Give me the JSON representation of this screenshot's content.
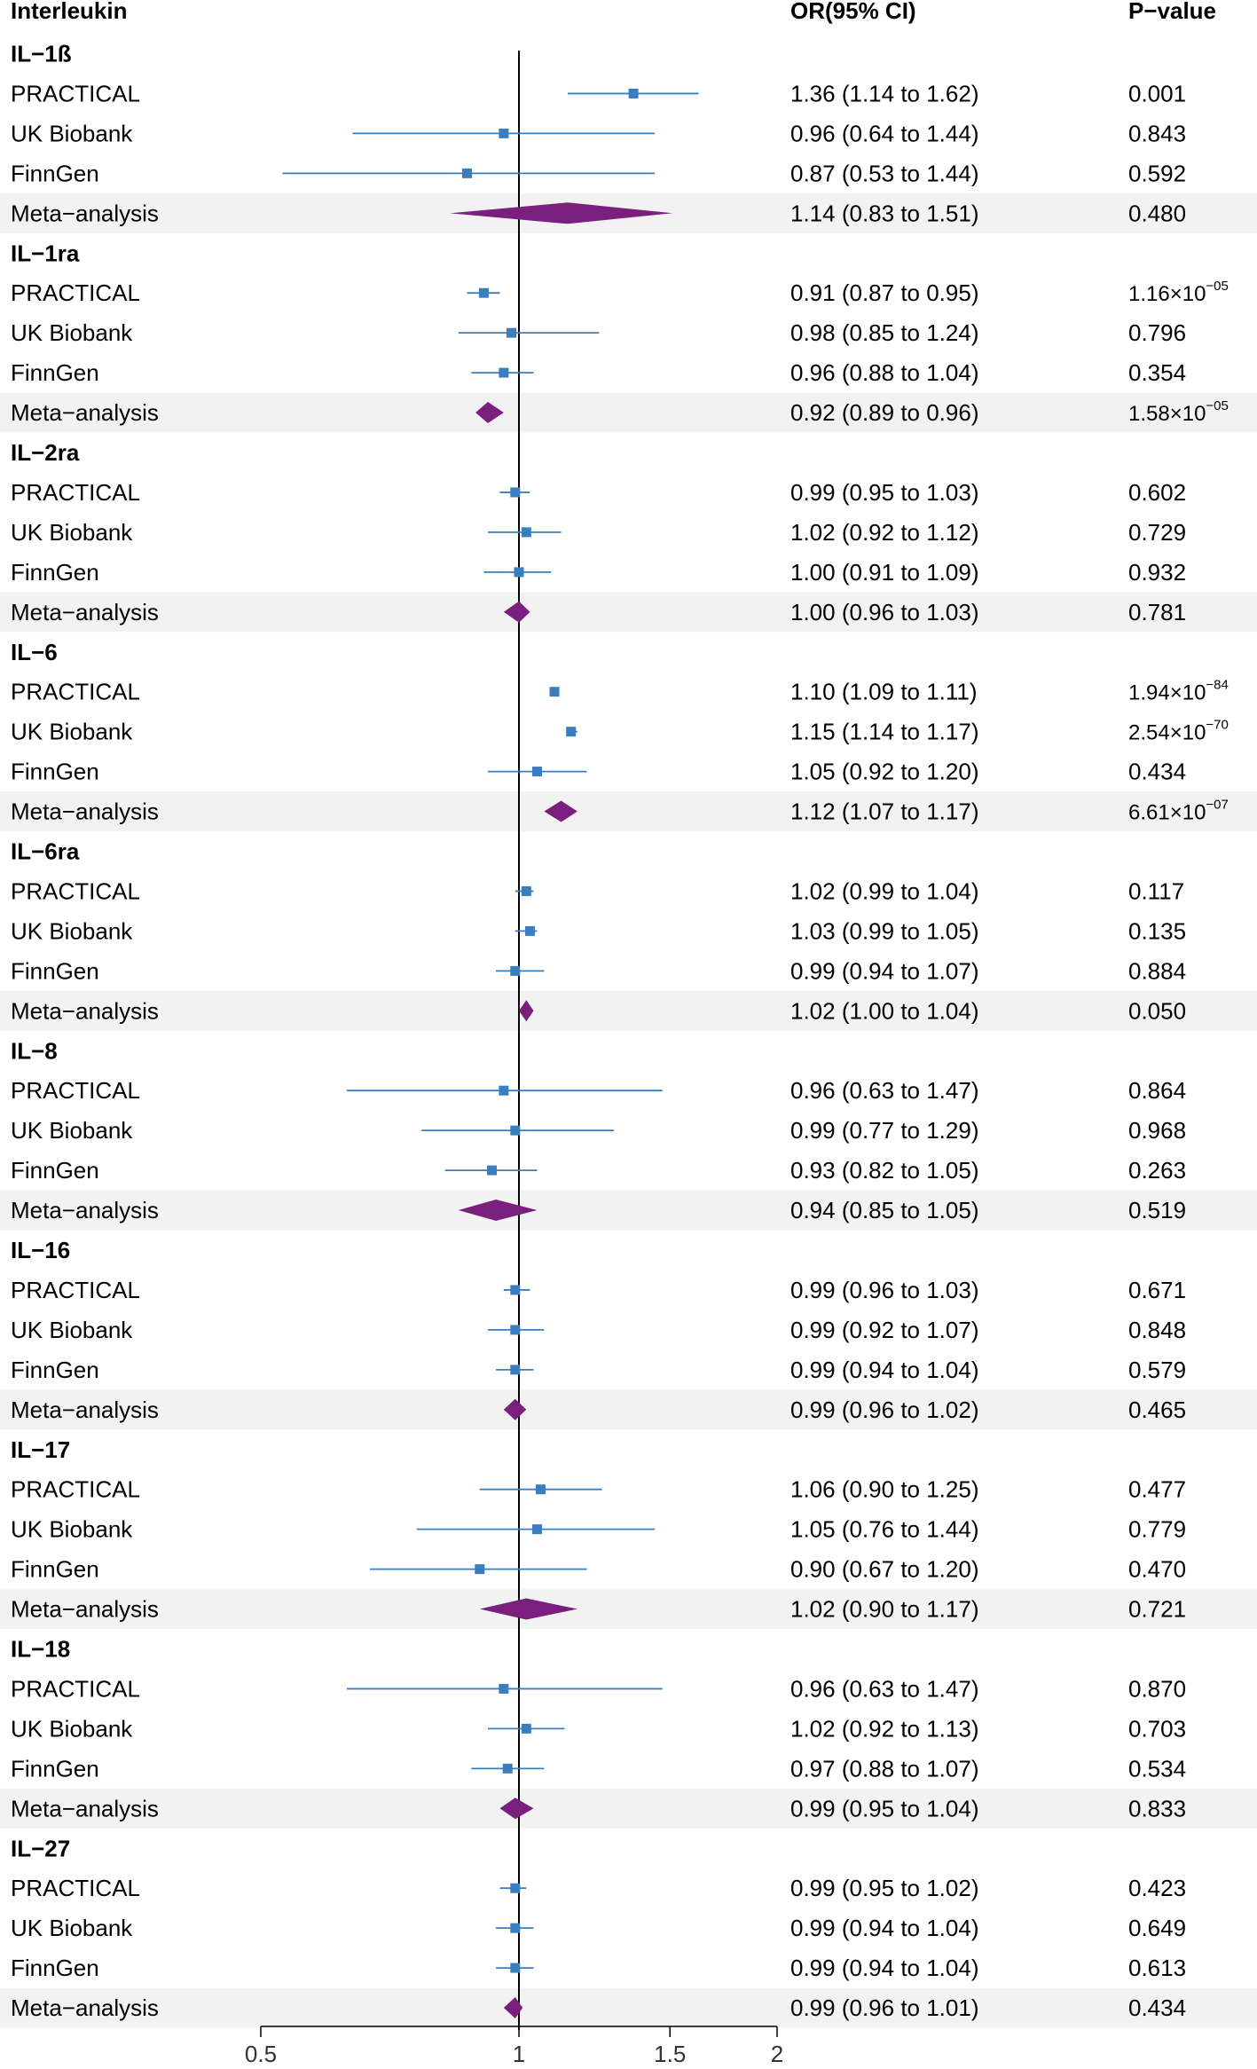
{
  "headers": {
    "label": "Interleukin",
    "or": "OR(95% CI)",
    "p": "P−value"
  },
  "colors": {
    "point": "#3A7EBF",
    "ci_line": "#3A7EBF",
    "diamond": "#7B1F7E",
    "shade": "#F2F2F2",
    "axis": "#000000"
  },
  "chart_data": {
    "type": "forest",
    "title": "",
    "xlabel": "",
    "x_scale": "log",
    "xlim": [
      0.5,
      2
    ],
    "xticks": [
      0.5,
      1,
      1.5,
      2
    ],
    "xtick_labels": [
      "0.5",
      "1",
      "1.5",
      "2"
    ],
    "reference_line": 1,
    "legend": "none",
    "groups": [
      {
        "name": "IL−1ß",
        "rows": [
          {
            "source": "PRACTICAL",
            "or": 1.36,
            "lo": 1.14,
            "hi": 1.62,
            "or_text": "1.36 (1.14 to 1.62)",
            "p_text": "0.001",
            "p_sup": "",
            "meta": false
          },
          {
            "source": "UK Biobank",
            "or": 0.96,
            "lo": 0.64,
            "hi": 1.44,
            "or_text": "0.96 (0.64 to 1.44)",
            "p_text": "0.843",
            "p_sup": "",
            "meta": false
          },
          {
            "source": "FinnGen",
            "or": 0.87,
            "lo": 0.53,
            "hi": 1.44,
            "or_text": "0.87 (0.53 to 1.44)",
            "p_text": "0.592",
            "p_sup": "",
            "meta": false
          },
          {
            "source": "Meta−analysis",
            "or": 1.14,
            "lo": 0.83,
            "hi": 1.51,
            "or_text": "1.14 (0.83 to 1.51)",
            "p_text": "0.480",
            "p_sup": "",
            "meta": true
          }
        ]
      },
      {
        "name": "IL−1ra",
        "rows": [
          {
            "source": "PRACTICAL",
            "or": 0.91,
            "lo": 0.87,
            "hi": 0.95,
            "or_text": "0.91 (0.87 to 0.95)",
            "p_text": "1.16×10",
            "p_sup": "−05",
            "meta": false
          },
          {
            "source": "UK Biobank",
            "or": 0.98,
            "lo": 0.85,
            "hi": 1.24,
            "or_text": "0.98 (0.85 to 1.24)",
            "p_text": "0.796",
            "p_sup": "",
            "meta": false
          },
          {
            "source": "FinnGen",
            "or": 0.96,
            "lo": 0.88,
            "hi": 1.04,
            "or_text": "0.96 (0.88 to 1.04)",
            "p_text": "0.354",
            "p_sup": "",
            "meta": false
          },
          {
            "source": "Meta−analysis",
            "or": 0.92,
            "lo": 0.89,
            "hi": 0.96,
            "or_text": "0.92 (0.89 to 0.96)",
            "p_text": "1.58×10",
            "p_sup": "−05",
            "meta": true
          }
        ]
      },
      {
        "name": "IL−2ra",
        "rows": [
          {
            "source": "PRACTICAL",
            "or": 0.99,
            "lo": 0.95,
            "hi": 1.03,
            "or_text": "0.99 (0.95 to 1.03)",
            "p_text": "0.602",
            "p_sup": "",
            "meta": false
          },
          {
            "source": "UK Biobank",
            "or": 1.02,
            "lo": 0.92,
            "hi": 1.12,
            "or_text": "1.02 (0.92 to 1.12)",
            "p_text": "0.729",
            "p_sup": "",
            "meta": false
          },
          {
            "source": "FinnGen",
            "or": 1.0,
            "lo": 0.91,
            "hi": 1.09,
            "or_text": "1.00 (0.91 to 1.09)",
            "p_text": "0.932",
            "p_sup": "",
            "meta": false
          },
          {
            "source": "Meta−analysis",
            "or": 1.0,
            "lo": 0.96,
            "hi": 1.03,
            "or_text": "1.00 (0.96 to 1.03)",
            "p_text": "0.781",
            "p_sup": "",
            "meta": true
          }
        ]
      },
      {
        "name": "IL−6",
        "rows": [
          {
            "source": "PRACTICAL",
            "or": 1.1,
            "lo": 1.09,
            "hi": 1.11,
            "or_text": "1.10 (1.09 to 1.11)",
            "p_text": "1.94×10",
            "p_sup": "−84",
            "meta": false
          },
          {
            "source": "UK Biobank",
            "or": 1.15,
            "lo": 1.14,
            "hi": 1.17,
            "or_text": "1.15 (1.14 to 1.17)",
            "p_text": "2.54×10",
            "p_sup": "−70",
            "meta": false
          },
          {
            "source": "FinnGen",
            "or": 1.05,
            "lo": 0.92,
            "hi": 1.2,
            "or_text": "1.05 (0.92 to 1.20)",
            "p_text": "0.434",
            "p_sup": "",
            "meta": false
          },
          {
            "source": "Meta−analysis",
            "or": 1.12,
            "lo": 1.07,
            "hi": 1.17,
            "or_text": "1.12 (1.07 to 1.17)",
            "p_text": "6.61×10",
            "p_sup": "−07",
            "meta": true
          }
        ]
      },
      {
        "name": "IL−6ra",
        "rows": [
          {
            "source": "PRACTICAL",
            "or": 1.02,
            "lo": 0.99,
            "hi": 1.04,
            "or_text": "1.02 (0.99 to 1.04)",
            "p_text": "0.117",
            "p_sup": "",
            "meta": false
          },
          {
            "source": "UK Biobank",
            "or": 1.03,
            "lo": 0.99,
            "hi": 1.05,
            "or_text": "1.03 (0.99 to 1.05)",
            "p_text": "0.135",
            "p_sup": "",
            "meta": false
          },
          {
            "source": "FinnGen",
            "or": 0.99,
            "lo": 0.94,
            "hi": 1.07,
            "or_text": "0.99 (0.94 to 1.07)",
            "p_text": "0.884",
            "p_sup": "",
            "meta": false
          },
          {
            "source": "Meta−analysis",
            "or": 1.02,
            "lo": 1.0,
            "hi": 1.04,
            "or_text": "1.02 (1.00 to 1.04)",
            "p_text": "0.050",
            "p_sup": "",
            "meta": true
          }
        ]
      },
      {
        "name": "IL−8",
        "rows": [
          {
            "source": "PRACTICAL",
            "or": 0.96,
            "lo": 0.63,
            "hi": 1.47,
            "or_text": "0.96 (0.63 to 1.47)",
            "p_text": "0.864",
            "p_sup": "",
            "meta": false
          },
          {
            "source": "UK Biobank",
            "or": 0.99,
            "lo": 0.77,
            "hi": 1.29,
            "or_text": "0.99 (0.77 to 1.29)",
            "p_text": "0.968",
            "p_sup": "",
            "meta": false
          },
          {
            "source": "FinnGen",
            "or": 0.93,
            "lo": 0.82,
            "hi": 1.05,
            "or_text": "0.93 (0.82 to 1.05)",
            "p_text": "0.263",
            "p_sup": "",
            "meta": false
          },
          {
            "source": "Meta−analysis",
            "or": 0.94,
            "lo": 0.85,
            "hi": 1.05,
            "or_text": "0.94 (0.85 to 1.05)",
            "p_text": "0.519",
            "p_sup": "",
            "meta": true
          }
        ]
      },
      {
        "name": "IL−16",
        "rows": [
          {
            "source": "PRACTICAL",
            "or": 0.99,
            "lo": 0.96,
            "hi": 1.03,
            "or_text": "0.99 (0.96 to 1.03)",
            "p_text": "0.671",
            "p_sup": "",
            "meta": false
          },
          {
            "source": "UK Biobank",
            "or": 0.99,
            "lo": 0.92,
            "hi": 1.07,
            "or_text": "0.99 (0.92 to 1.07)",
            "p_text": "0.848",
            "p_sup": "",
            "meta": false
          },
          {
            "source": "FinnGen",
            "or": 0.99,
            "lo": 0.94,
            "hi": 1.04,
            "or_text": "0.99 (0.94 to 1.04)",
            "p_text": "0.579",
            "p_sup": "",
            "meta": false
          },
          {
            "source": "Meta−analysis",
            "or": 0.99,
            "lo": 0.96,
            "hi": 1.02,
            "or_text": "0.99 (0.96 to 1.02)",
            "p_text": "0.465",
            "p_sup": "",
            "meta": true
          }
        ]
      },
      {
        "name": "IL−17",
        "rows": [
          {
            "source": "PRACTICAL",
            "or": 1.06,
            "lo": 0.9,
            "hi": 1.25,
            "or_text": "1.06 (0.90 to 1.25)",
            "p_text": "0.477",
            "p_sup": "",
            "meta": false
          },
          {
            "source": "UK Biobank",
            "or": 1.05,
            "lo": 0.76,
            "hi": 1.44,
            "or_text": "1.05 (0.76 to 1.44)",
            "p_text": "0.779",
            "p_sup": "",
            "meta": false
          },
          {
            "source": "FinnGen",
            "or": 0.9,
            "lo": 0.67,
            "hi": 1.2,
            "or_text": "0.90 (0.67 to 1.20)",
            "p_text": "0.470",
            "p_sup": "",
            "meta": false
          },
          {
            "source": "Meta−analysis",
            "or": 1.02,
            "lo": 0.9,
            "hi": 1.17,
            "or_text": "1.02 (0.90 to 1.17)",
            "p_text": "0.721",
            "p_sup": "",
            "meta": true
          }
        ]
      },
      {
        "name": "IL−18",
        "rows": [
          {
            "source": "PRACTICAL",
            "or": 0.96,
            "lo": 0.63,
            "hi": 1.47,
            "or_text": "0.96 (0.63 to 1.47)",
            "p_text": "0.870",
            "p_sup": "",
            "meta": false
          },
          {
            "source": "UK Biobank",
            "or": 1.02,
            "lo": 0.92,
            "hi": 1.13,
            "or_text": "1.02 (0.92 to 1.13)",
            "p_text": "0.703",
            "p_sup": "",
            "meta": false
          },
          {
            "source": "FinnGen",
            "or": 0.97,
            "lo": 0.88,
            "hi": 1.07,
            "or_text": "0.97 (0.88 to 1.07)",
            "p_text": "0.534",
            "p_sup": "",
            "meta": false
          },
          {
            "source": "Meta−analysis",
            "or": 0.99,
            "lo": 0.95,
            "hi": 1.04,
            "or_text": "0.99 (0.95 to 1.04)",
            "p_text": "0.833",
            "p_sup": "",
            "meta": true
          }
        ]
      },
      {
        "name": "IL−27",
        "rows": [
          {
            "source": "PRACTICAL",
            "or": 0.99,
            "lo": 0.95,
            "hi": 1.02,
            "or_text": "0.99 (0.95 to 1.02)",
            "p_text": "0.423",
            "p_sup": "",
            "meta": false
          },
          {
            "source": "UK Biobank",
            "or": 0.99,
            "lo": 0.94,
            "hi": 1.04,
            "or_text": "0.99 (0.94 to 1.04)",
            "p_text": "0.649",
            "p_sup": "",
            "meta": false
          },
          {
            "source": "FinnGen",
            "or": 0.99,
            "lo": 0.94,
            "hi": 1.04,
            "or_text": "0.99 (0.94 to 1.04)",
            "p_text": "0.613",
            "p_sup": "",
            "meta": false
          },
          {
            "source": "Meta−analysis",
            "or": 0.99,
            "lo": 0.96,
            "hi": 1.01,
            "or_text": "0.99 (0.96 to 1.01)",
            "p_text": "0.434",
            "p_sup": "",
            "meta": true
          }
        ]
      }
    ]
  }
}
